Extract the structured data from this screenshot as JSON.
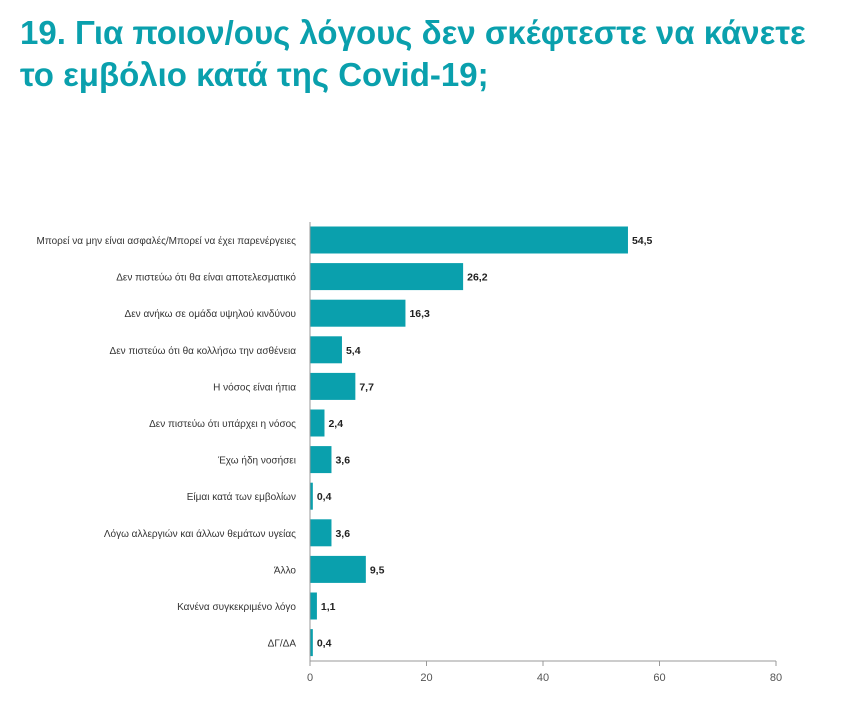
{
  "title": "19. Για ποιον/ους λόγους δεν σκέφτεστε να κάνετε το εμβόλιο κατά της Covid-19;",
  "colors": {
    "bar": "#0aa0ad",
    "title": "#0aa0ad",
    "axis": "#999999",
    "label_text": "#333333",
    "value_text": "#222222"
  },
  "chart_data": {
    "type": "bar",
    "orientation": "horizontal",
    "categories": [
      "Μπορεί να μην είναι ασφαλές/Μπορεί να έχει παρενέργειες",
      "Δεν πιστεύω ότι θα είναι αποτελεσματικό",
      "Δεν ανήκω σε ομάδα υψηλού κινδύνου",
      "Δεν πιστεύω ότι θα κολλήσω την ασθένεια",
      "Η νόσος είναι ήπια",
      "Δεν πιστεύω ότι υπάρχει η νόσος",
      "Έχω ήδη νοσήσει",
      "Είμαι κατά των εμβολίων",
      "Λόγω αλλεργιών και άλλων θεμάτων υγείας",
      "Άλλο",
      "Κανένα συγκεκριμένο λόγο",
      "ΔΓ/ΔΑ"
    ],
    "values": [
      54.5,
      26.2,
      16.3,
      5.4,
      7.7,
      2.4,
      3.6,
      0.4,
      3.6,
      9.5,
      1.1,
      0.4
    ],
    "value_labels": [
      "54,5",
      "26,2",
      "16,3",
      "5,4",
      "7,7",
      "2,4",
      "3,6",
      "0,4",
      "3,6",
      "9,5",
      "1,1",
      "0,4"
    ],
    "xlim": [
      0,
      80
    ],
    "xticks": [
      0,
      20,
      40,
      60,
      80
    ],
    "xtick_labels": [
      "0",
      "20",
      "40",
      "60",
      "80"
    ],
    "grid": false,
    "legend": "none"
  }
}
